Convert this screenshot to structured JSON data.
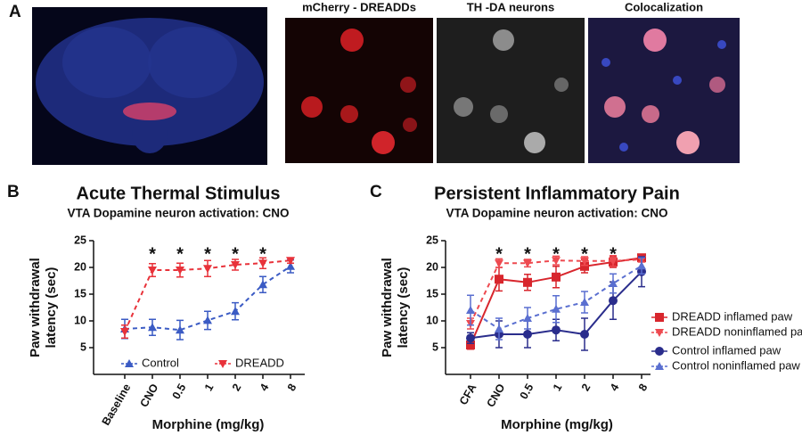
{
  "panel_labels": [
    "A",
    "B",
    "C"
  ],
  "image_titles": [
    "mCherry - DREADDs",
    "TH -DA  neurons",
    "Colocalization"
  ],
  "chart_data": [
    {
      "type": "line",
      "title": "Acute Thermal Stimulus",
      "subtitle": "VTA Dopamine neuron activation: CNO",
      "y_label": [
        "Paw withdrawal",
        "latency (sec)"
      ],
      "x_label": "Morphine (mg/kg)",
      "categories": [
        "Baseline",
        "CNO",
        "0.5",
        "1",
        "2",
        "4",
        "8"
      ],
      "ylim": [
        0,
        25
      ],
      "yticks": [
        5,
        10,
        15,
        20,
        25
      ],
      "significance": [
        null,
        "*",
        "*",
        "*",
        "*",
        "*",
        null
      ],
      "legend": "bottom",
      "series": [
        {
          "name": "Control",
          "color": "#3b5bc4",
          "marker": "triangle-up",
          "dash": true,
          "values": [
            8.5,
            8.8,
            8.3,
            10.1,
            11.8,
            16.8,
            20.2
          ],
          "errors": [
            1.8,
            1.5,
            1.8,
            1.7,
            1.6,
            1.5,
            1.2
          ]
        },
        {
          "name": "DREADD",
          "color": "#e8323a",
          "marker": "triangle-down",
          "dash": true,
          "values": [
            8.0,
            19.5,
            19.5,
            19.8,
            20.5,
            20.8,
            21.3
          ],
          "errors": [
            1.2,
            1.2,
            1.3,
            1.5,
            1.0,
            1.0,
            0.5
          ]
        }
      ]
    },
    {
      "type": "line",
      "title": "Persistent Inflammatory Pain",
      "subtitle": "VTA Dopamine neuron activation: CNO",
      "y_label": [
        "Paw withdrawal",
        "latency (sec)"
      ],
      "x_label": "Morphine (mg/kg)",
      "categories": [
        "CFA",
        "CNO",
        "0.5",
        "1",
        "2",
        "4",
        "8"
      ],
      "ylim": [
        0,
        25
      ],
      "yticks": [
        5,
        10,
        15,
        20,
        25
      ],
      "significance": [
        null,
        "*",
        "*",
        "*",
        "*",
        "*",
        null
      ],
      "legend": "right",
      "series": [
        {
          "name": "DREADD inflamed paw",
          "color": "#d8262d",
          "marker": "square",
          "dash": false,
          "values": [
            5.5,
            17.8,
            17.2,
            18.2,
            20.2,
            21.0,
            21.8
          ],
          "errors": [
            0.8,
            2.2,
            1.5,
            2.0,
            1.2,
            1.0,
            0.5
          ]
        },
        {
          "name": "DREADD noninflamed paw",
          "color": "#ee4a50",
          "marker": "triangle-down",
          "dash": true,
          "values": [
            9.5,
            20.8,
            20.8,
            21.3,
            21.2,
            21.2,
            21.5
          ],
          "errors": [
            1.0,
            0.8,
            0.7,
            0.8,
            0.8,
            1.0,
            0.5
          ]
        },
        {
          "name": "Control inflamed paw",
          "color": "#2a2d8c",
          "marker": "circle",
          "dash": false,
          "values": [
            6.8,
            7.5,
            7.5,
            8.3,
            7.5,
            13.8,
            19.2
          ],
          "errors": [
            1.0,
            2.5,
            2.5,
            2.0,
            3.0,
            3.5,
            2.8
          ]
        },
        {
          "name": "Control noninflamed paw",
          "color": "#5a6fd0",
          "marker": "triangle-up",
          "dash": true,
          "values": [
            12.0,
            8.5,
            10.5,
            12.2,
            13.5,
            17.0,
            20.3
          ],
          "errors": [
            2.8,
            2.0,
            2.0,
            2.5,
            2.0,
            1.8,
            1.5
          ]
        }
      ]
    }
  ]
}
